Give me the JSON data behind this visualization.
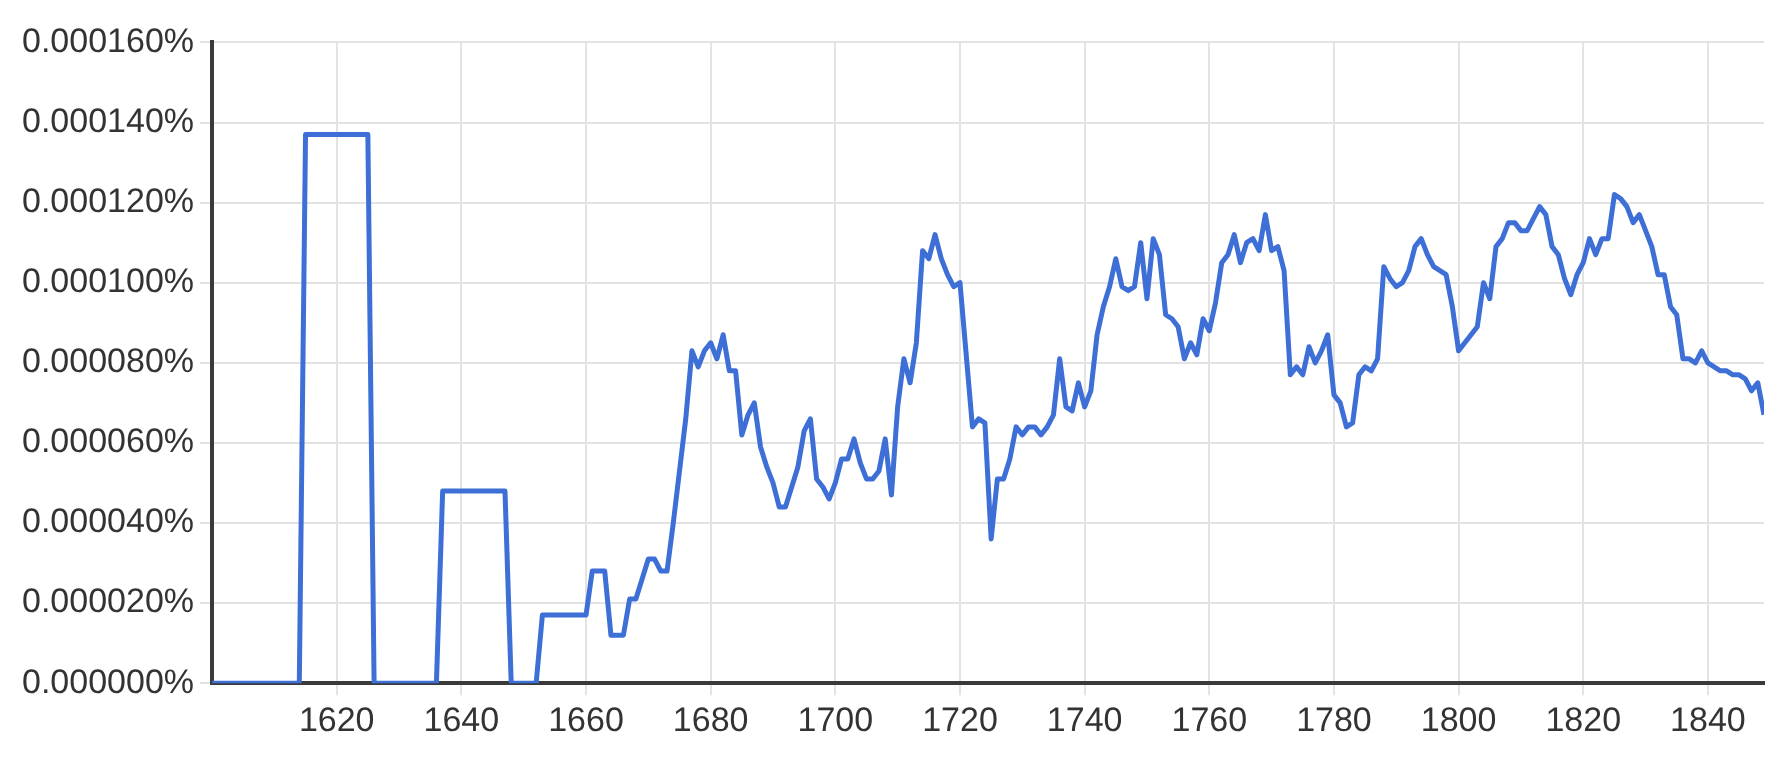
{
  "chart_data": {
    "type": "line",
    "x": [
      1600,
      1601,
      1602,
      1603,
      1604,
      1605,
      1606,
      1607,
      1608,
      1609,
      1610,
      1611,
      1612,
      1613,
      1614,
      1615,
      1616,
      1617,
      1618,
      1619,
      1620,
      1621,
      1622,
      1623,
      1624,
      1625,
      1626,
      1627,
      1628,
      1629,
      1630,
      1631,
      1632,
      1633,
      1634,
      1635,
      1636,
      1637,
      1638,
      1639,
      1640,
      1641,
      1642,
      1643,
      1644,
      1645,
      1646,
      1647,
      1648,
      1649,
      1650,
      1651,
      1652,
      1653,
      1654,
      1655,
      1656,
      1657,
      1658,
      1659,
      1660,
      1661,
      1662,
      1663,
      1664,
      1665,
      1666,
      1667,
      1668,
      1669,
      1670,
      1671,
      1672,
      1673,
      1674,
      1675,
      1676,
      1677,
      1678,
      1679,
      1680,
      1681,
      1682,
      1683,
      1684,
      1685,
      1686,
      1687,
      1688,
      1689,
      1690,
      1691,
      1692,
      1693,
      1694,
      1695,
      1696,
      1697,
      1698,
      1699,
      1700,
      1701,
      1702,
      1703,
      1704,
      1705,
      1706,
      1707,
      1708,
      1709,
      1710,
      1711,
      1712,
      1713,
      1714,
      1715,
      1716,
      1717,
      1718,
      1719,
      1720,
      1721,
      1722,
      1723,
      1724,
      1725,
      1726,
      1727,
      1728,
      1729,
      1730,
      1731,
      1732,
      1733,
      1734,
      1735,
      1736,
      1737,
      1738,
      1739,
      1740,
      1741,
      1742,
      1743,
      1744,
      1745,
      1746,
      1747,
      1748,
      1749,
      1750,
      1751,
      1752,
      1753,
      1754,
      1755,
      1756,
      1757,
      1758,
      1759,
      1760,
      1761,
      1762,
      1763,
      1764,
      1765,
      1766,
      1767,
      1768,
      1769,
      1770,
      1771,
      1772,
      1773,
      1774,
      1775,
      1776,
      1777,
      1778,
      1779,
      1780,
      1781,
      1782,
      1783,
      1784,
      1785,
      1786,
      1787,
      1788,
      1789,
      1790,
      1791,
      1792,
      1793,
      1794,
      1795,
      1796,
      1797,
      1798,
      1799,
      1800,
      1801,
      1802,
      1803,
      1804,
      1805,
      1806,
      1807,
      1808,
      1809,
      1810,
      1811,
      1812,
      1813,
      1814,
      1815,
      1816,
      1817,
      1818,
      1819,
      1820,
      1821,
      1822,
      1823,
      1824,
      1825,
      1826,
      1827,
      1828,
      1829,
      1830,
      1831,
      1832,
      1833,
      1834,
      1835,
      1836,
      1837,
      1838,
      1839,
      1840,
      1841,
      1842,
      1843,
      1844,
      1845,
      1846,
      1847,
      1848,
      1849
    ],
    "series": [
      {
        "color": "#3d6fd6",
        "values": [
          0,
          0,
          0,
          0,
          0,
          0,
          0,
          0,
          0,
          0,
          0,
          0,
          0,
          0,
          0,
          0.000137,
          0.000137,
          0.000137,
          0.000137,
          0.000137,
          0.000137,
          0.000137,
          0.000137,
          0.000137,
          0.000137,
          0.000137,
          0,
          0,
          0,
          0,
          0,
          0,
          0,
          0,
          0,
          0,
          0,
          4.8e-05,
          4.8e-05,
          4.8e-05,
          4.8e-05,
          4.8e-05,
          4.8e-05,
          4.8e-05,
          4.8e-05,
          4.8e-05,
          4.8e-05,
          4.8e-05,
          0,
          0,
          0,
          0,
          0,
          1.7e-05,
          1.7e-05,
          1.7e-05,
          1.7e-05,
          1.7e-05,
          1.7e-05,
          1.7e-05,
          1.7e-05,
          2.8e-05,
          2.8e-05,
          2.8e-05,
          1.2e-05,
          1.2e-05,
          1.2e-05,
          2.1e-05,
          2.1e-05,
          2.6e-05,
          3.1e-05,
          3.1e-05,
          2.8e-05,
          2.8e-05,
          4e-05,
          5.3e-05,
          6.6e-05,
          8.3e-05,
          7.9e-05,
          8.3e-05,
          8.5e-05,
          8.1e-05,
          8.7e-05,
          7.8e-05,
          7.8e-05,
          6.2e-05,
          6.7e-05,
          7e-05,
          5.9e-05,
          5.4e-05,
          5e-05,
          4.4e-05,
          4.4e-05,
          4.9e-05,
          5.4e-05,
          6.3e-05,
          6.6e-05,
          5.1e-05,
          4.9e-05,
          4.6e-05,
          5e-05,
          5.6e-05,
          5.6e-05,
          6.1e-05,
          5.5e-05,
          5.1e-05,
          5.1e-05,
          5.3e-05,
          6.1e-05,
          4.7e-05,
          6.9e-05,
          8.1e-05,
          7.5e-05,
          8.5e-05,
          0.000108,
          0.000106,
          0.000112,
          0.000106,
          0.000102,
          9.9e-05,
          0.0001,
          8.2e-05,
          6.4e-05,
          6.6e-05,
          6.5e-05,
          3.6e-05,
          5.1e-05,
          5.1e-05,
          5.6e-05,
          6.4e-05,
          6.2e-05,
          6.4e-05,
          6.4e-05,
          6.2e-05,
          6.4e-05,
          6.7e-05,
          8.1e-05,
          6.9e-05,
          6.8e-05,
          7.5e-05,
          6.9e-05,
          7.3e-05,
          8.7e-05,
          9.4e-05,
          9.9e-05,
          0.000106,
          9.9e-05,
          9.8e-05,
          9.9e-05,
          0.00011,
          9.6e-05,
          0.000111,
          0.000107,
          9.2e-05,
          9.1e-05,
          8.9e-05,
          8.1e-05,
          8.5e-05,
          8.2e-05,
          9.1e-05,
          8.8e-05,
          9.5e-05,
          0.000105,
          0.000107,
          0.000112,
          0.000105,
          0.00011,
          0.000111,
          0.000108,
          0.000117,
          0.000108,
          0.000109,
          0.000103,
          7.7e-05,
          7.9e-05,
          7.7e-05,
          8.4e-05,
          8e-05,
          8.3e-05,
          8.7e-05,
          7.2e-05,
          7e-05,
          6.4e-05,
          6.5e-05,
          7.7e-05,
          7.9e-05,
          7.8e-05,
          8.1e-05,
          0.000104,
          0.000101,
          9.9e-05,
          0.0001,
          0.000103,
          0.000109,
          0.000111,
          0.000107,
          0.000104,
          0.000103,
          0.000102,
          9.4e-05,
          8.3e-05,
          8.5e-05,
          8.7e-05,
          8.9e-05,
          0.0001,
          9.6e-05,
          0.000109,
          0.000111,
          0.000115,
          0.000115,
          0.000113,
          0.000113,
          0.000116,
          0.000119,
          0.000117,
          0.000109,
          0.000107,
          0.000101,
          9.7e-05,
          0.000102,
          0.000105,
          0.000111,
          0.000107,
          0.000111,
          0.000111,
          0.000122,
          0.000121,
          0.000119,
          0.000115,
          0.000117,
          0.000113,
          0.000109,
          0.000102,
          0.000102,
          9.4e-05,
          9.2e-05,
          8.1e-05,
          8.1e-05,
          8e-05,
          8.3e-05,
          8e-05,
          7.9e-05,
          7.8e-05,
          7.8e-05,
          7.7e-05,
          7.7e-05,
          7.6e-05,
          7.3e-05,
          7.5e-05,
          6.7e-05
        ]
      }
    ],
    "xlim": [
      1600,
      1849
    ],
    "xticks": [
      1620,
      1640,
      1660,
      1680,
      1700,
      1720,
      1740,
      1760,
      1780,
      1800,
      1820,
      1840
    ],
    "ylim": [
      0,
      0.00016
    ],
    "yticks": [
      {
        "value": 0,
        "label": "0.000000%"
      },
      {
        "value": 2e-05,
        "label": "0.000020%"
      },
      {
        "value": 4e-05,
        "label": "0.000040%"
      },
      {
        "value": 6e-05,
        "label": "0.000060%"
      },
      {
        "value": 8e-05,
        "label": "0.000080%"
      },
      {
        "value": 0.0001,
        "label": "0.000100%"
      },
      {
        "value": 0.00012,
        "label": "0.000120%"
      },
      {
        "value": 0.00014,
        "label": "0.000140%"
      },
      {
        "value": 0.00016,
        "label": "0.000160%"
      }
    ],
    "grid": true,
    "marker": "none",
    "line_style": "solid"
  }
}
